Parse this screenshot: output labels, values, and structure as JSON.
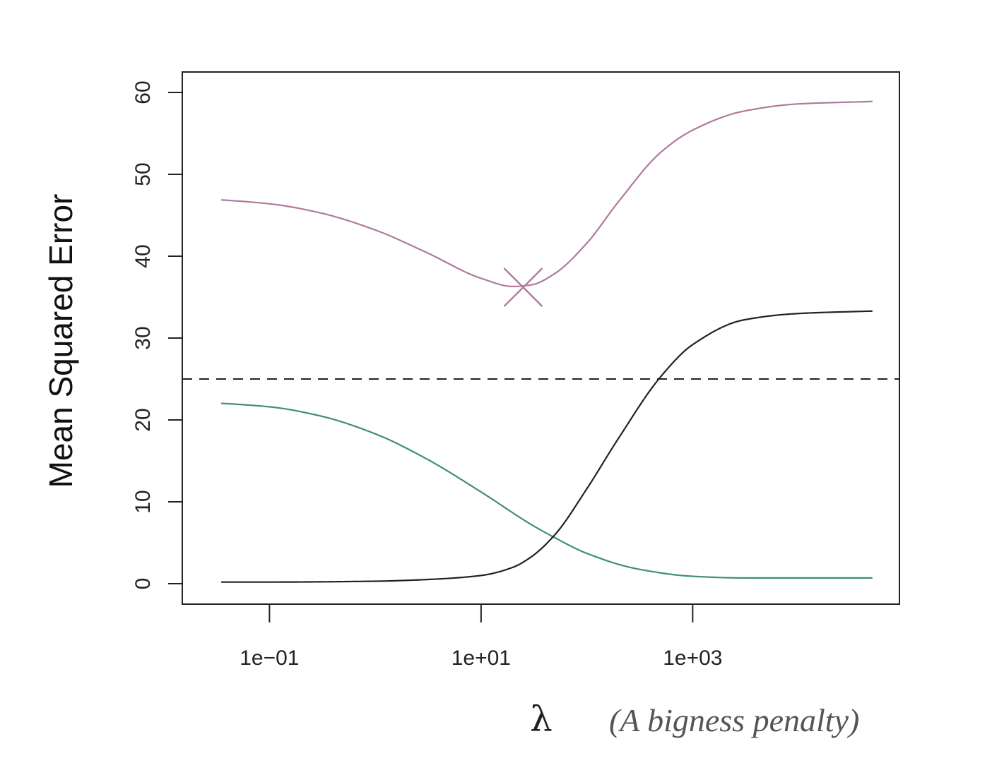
{
  "chart_data": {
    "type": "line",
    "title": "",
    "xlabel": "λ",
    "xlabel_annotation": "(A bigness penalty)",
    "ylabel": "Mean Squared Error",
    "x_scale": "log",
    "xlim": [
      0.015,
      90000
    ],
    "ylim": [
      -2.5,
      62.5
    ],
    "x_ticks": [
      0.1,
      10,
      1000
    ],
    "x_tick_labels": [
      "1e−01",
      "1e+01",
      "1e+03"
    ],
    "y_ticks": [
      0,
      10,
      20,
      30,
      40,
      50,
      60
    ],
    "y_tick_labels": [
      "0",
      "10",
      "20",
      "30",
      "40",
      "50",
      "60"
    ],
    "grid": false,
    "legend": "none",
    "series": [
      {
        "color": "#b07a9e",
        "x": [
          0.01,
          0.1,
          0.3,
          1,
          3,
          10,
          20,
          30,
          50,
          100,
          200,
          500,
          1000,
          3000,
          10000,
          50000
        ],
        "y": [
          47.3,
          46.4,
          45.3,
          43.2,
          40.5,
          37.3,
          36.3,
          36.5,
          37.9,
          41.6,
          46.7,
          52.7,
          55.4,
          57.7,
          58.6,
          58.9
        ]
      },
      {
        "color": "#3f8f74",
        "x": [
          0.01,
          0.1,
          0.3,
          1,
          3,
          10,
          30,
          50,
          100,
          300,
          1000,
          3000,
          10000,
          50000
        ],
        "y": [
          22.4,
          21.6,
          20.5,
          18.3,
          15.3,
          11.2,
          7.2,
          5.6,
          3.7,
          1.8,
          0.9,
          0.7,
          0.7,
          0.7
        ]
      },
      {
        "color": "#222222",
        "x": [
          0.01,
          0.1,
          1,
          3,
          10,
          20,
          30,
          50,
          100,
          200,
          500,
          1000,
          3000,
          10000,
          50000
        ],
        "y": [
          0.2,
          0.2,
          0.3,
          0.5,
          1.0,
          2.0,
          3.3,
          6.0,
          11.6,
          17.8,
          25.3,
          29.2,
          32.2,
          33.0,
          33.3
        ]
      }
    ],
    "reference_line": {
      "y": 25,
      "style": "dashed",
      "color": "#222222"
    },
    "marker": {
      "shape": "x",
      "x": 25,
      "y": 36.2,
      "color": "#b07a9e"
    }
  }
}
